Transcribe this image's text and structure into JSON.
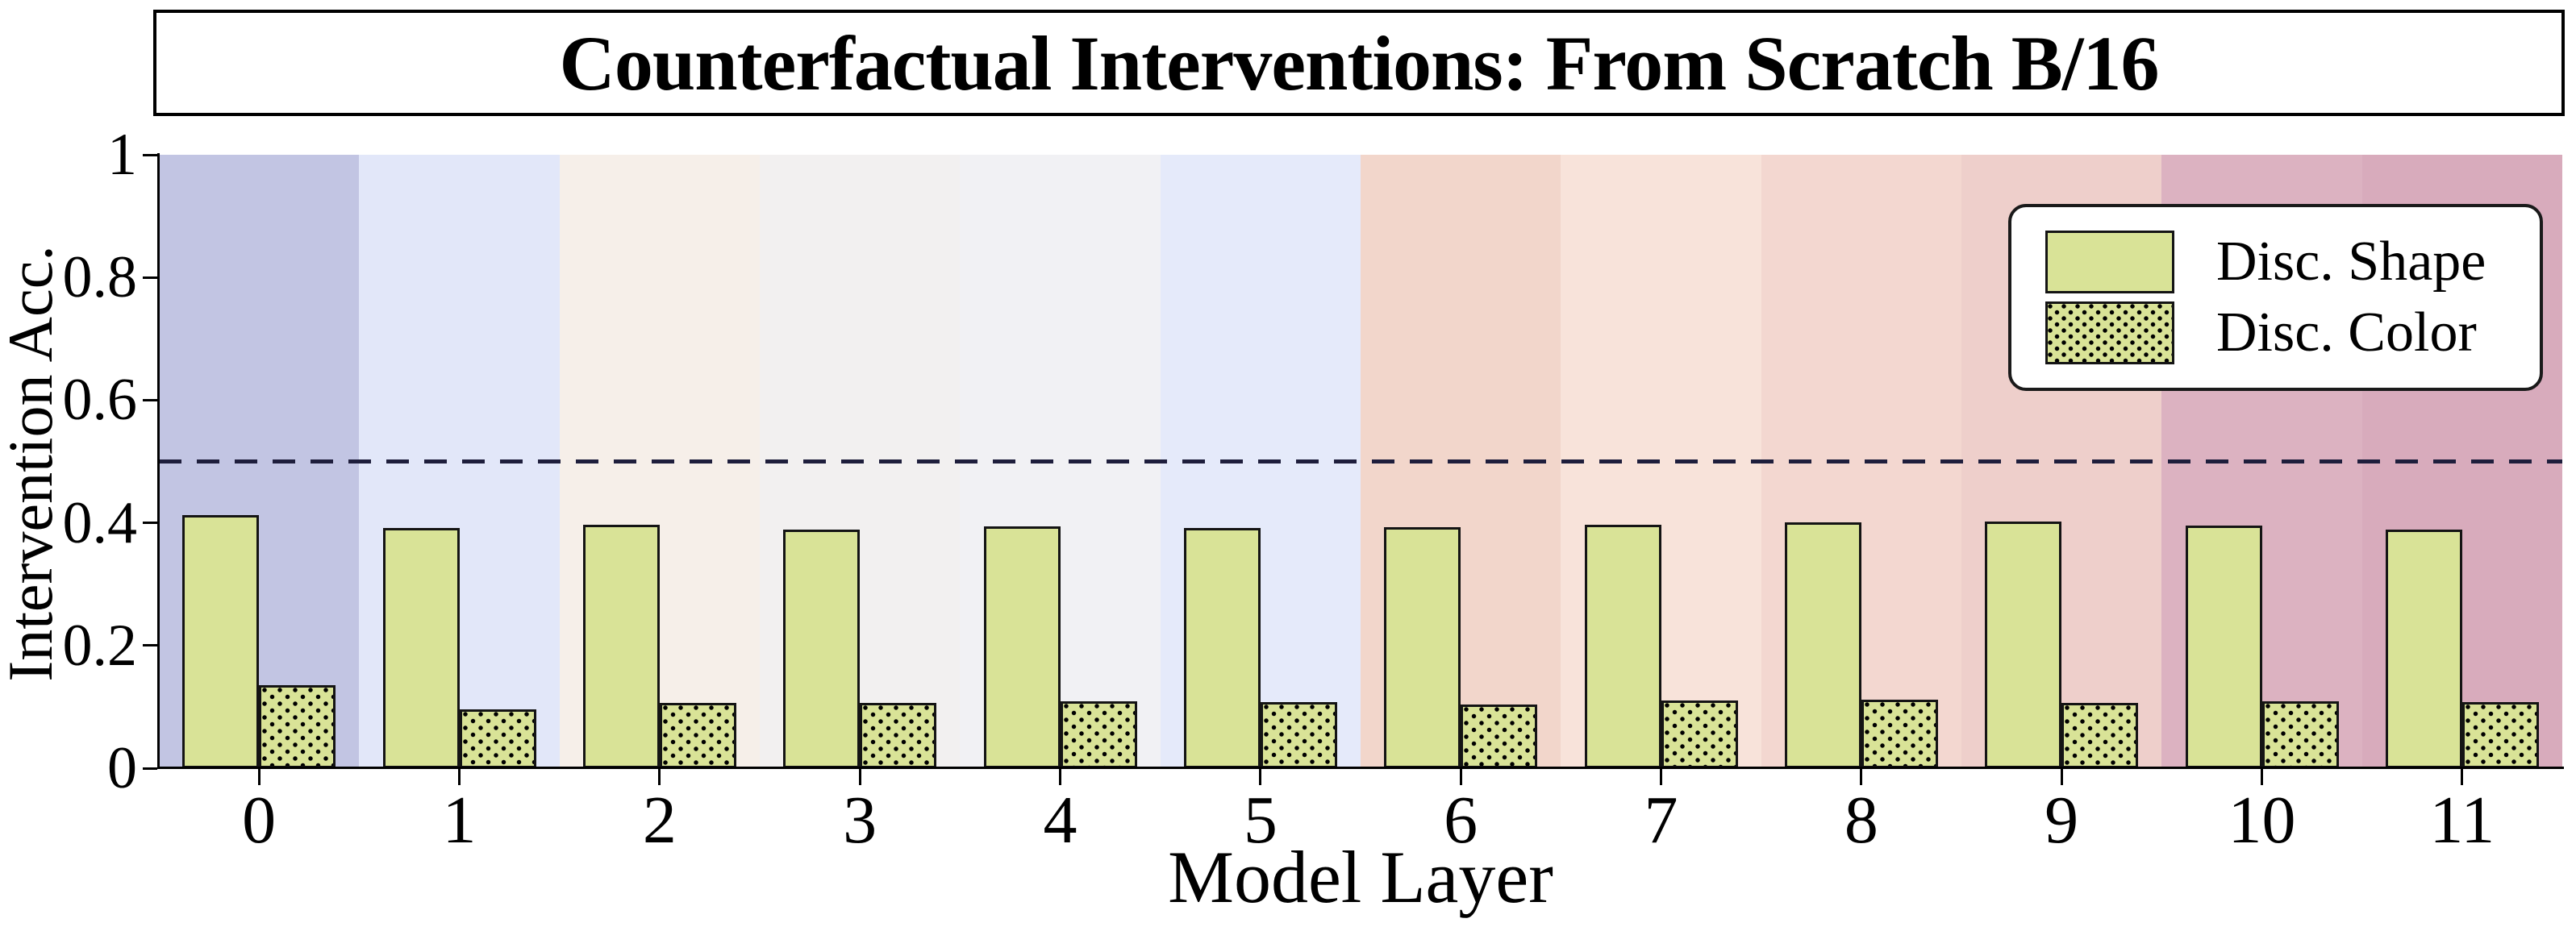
{
  "title": "Counterfactual Interventions: From Scratch B/16",
  "axes": {
    "xlabel": "Model Layer",
    "ylabel": "Intervention Acc."
  },
  "legend": {
    "entries": [
      {
        "label": "Disc. Shape",
        "pattern": "solid"
      },
      {
        "label": "Disc. Color",
        "pattern": "dotted"
      }
    ]
  },
  "chart_data": {
    "type": "bar",
    "title": "Counterfactual Interventions: From Scratch B/16",
    "xlabel": "Model Layer",
    "ylabel": "Intervention Acc.",
    "categories": [
      "0",
      "1",
      "2",
      "3",
      "4",
      "5",
      "6",
      "7",
      "8",
      "9",
      "10",
      "11"
    ],
    "series": [
      {
        "name": "Disc. Shape",
        "pattern": "solid",
        "values": [
          0.413,
          0.392,
          0.397,
          0.389,
          0.394,
          0.391,
          0.393,
          0.397,
          0.401,
          0.402,
          0.395,
          0.389
        ]
      },
      {
        "name": "Disc. Color",
        "pattern": "dotted",
        "values": [
          0.135,
          0.096,
          0.107,
          0.107,
          0.109,
          0.108,
          0.104,
          0.11,
          0.112,
          0.107,
          0.109,
          0.108
        ]
      }
    ],
    "y_ticks": [
      0,
      0.2,
      0.4,
      0.6,
      0.8,
      1
    ],
    "y_tick_labels": [
      "0",
      "0.2",
      "0.4",
      "0.6",
      "0.8",
      "1"
    ],
    "ylim": [
      0,
      1
    ],
    "reference_line": {
      "value": 0.5,
      "style": "dashed",
      "color": "#1e1e3c"
    },
    "bar_fill": "#d9e397",
    "bar_border": "#141414",
    "band_colors": [
      "#c2c5e3",
      "#e2e7f9",
      "#f6efe9",
      "#f2f0f0",
      "#f1f1f4",
      "#e5eafa",
      "#f2d6cb",
      "#f8e3da",
      "#f3d7d0",
      "#eecfcb",
      "#dcb2c1",
      "#d8abbc"
    ],
    "legend_position": "upper right",
    "grid": false
  }
}
